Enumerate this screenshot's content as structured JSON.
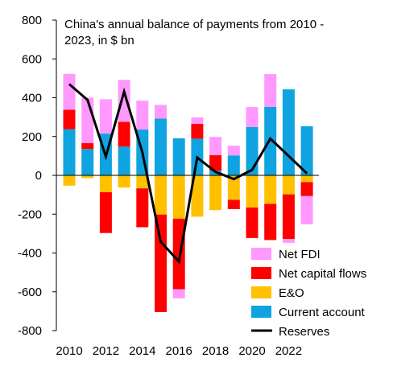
{
  "chart_data": {
    "type": "bar",
    "title_lines": [
      "China's annual balance of payments from 2010 -",
      "2023, in $ bn"
    ],
    "xlabel": "",
    "ylabel": "",
    "ylim": [
      -800,
      800
    ],
    "yticks": [
      -800,
      -600,
      -400,
      -200,
      0,
      200,
      400,
      600,
      800
    ],
    "x_tick_labels": [
      "2010",
      "2012",
      "2014",
      "2016",
      "2018",
      "2020",
      "2022"
    ],
    "categories": [
      "2010",
      "2011",
      "2012",
      "2013",
      "2014",
      "2015",
      "2016",
      "2017",
      "2018",
      "2019",
      "2020",
      "2021",
      "2022",
      "2023"
    ],
    "grid": false,
    "legend_position": "bottom-center",
    "series": [
      {
        "name": "Current account",
        "kind": "bar",
        "color": "#0fa3e0",
        "values": [
          238,
          136,
          215,
          148,
          236,
          293,
          191,
          189,
          24,
          103,
          249,
          353,
          443,
          253
        ]
      },
      {
        "name": "E&O",
        "kind": "bar",
        "color": "#ffc000",
        "values": [
          -53,
          -14,
          -87,
          -63,
          -67,
          -202,
          -223,
          -213,
          -179,
          -126,
          -166,
          -147,
          -98,
          -35
        ]
      },
      {
        "name": "Net capital flows",
        "kind": "bar",
        "color": "#ff0000",
        "values": [
          100,
          30,
          -210,
          128,
          -200,
          -503,
          -364,
          77,
          80,
          -48,
          -157,
          -186,
          -230,
          -72
        ]
      },
      {
        "name": "Net FDI",
        "kind": "bar",
        "color": "#ff99ff",
        "values": [
          185,
          235,
          177,
          216,
          149,
          70,
          -47,
          33,
          94,
          50,
          103,
          169,
          -20,
          -145
        ]
      },
      {
        "name": "Reserves",
        "kind": "line",
        "color": "#000000",
        "values": [
          470,
          389,
          97,
          431,
          118,
          -342,
          -444,
          92,
          18,
          -19,
          28,
          189,
          100,
          10
        ]
      }
    ],
    "legend_order": [
      "Net FDI",
      "Net capital flows",
      "E&O",
      "Current account",
      "Reserves"
    ]
  }
}
